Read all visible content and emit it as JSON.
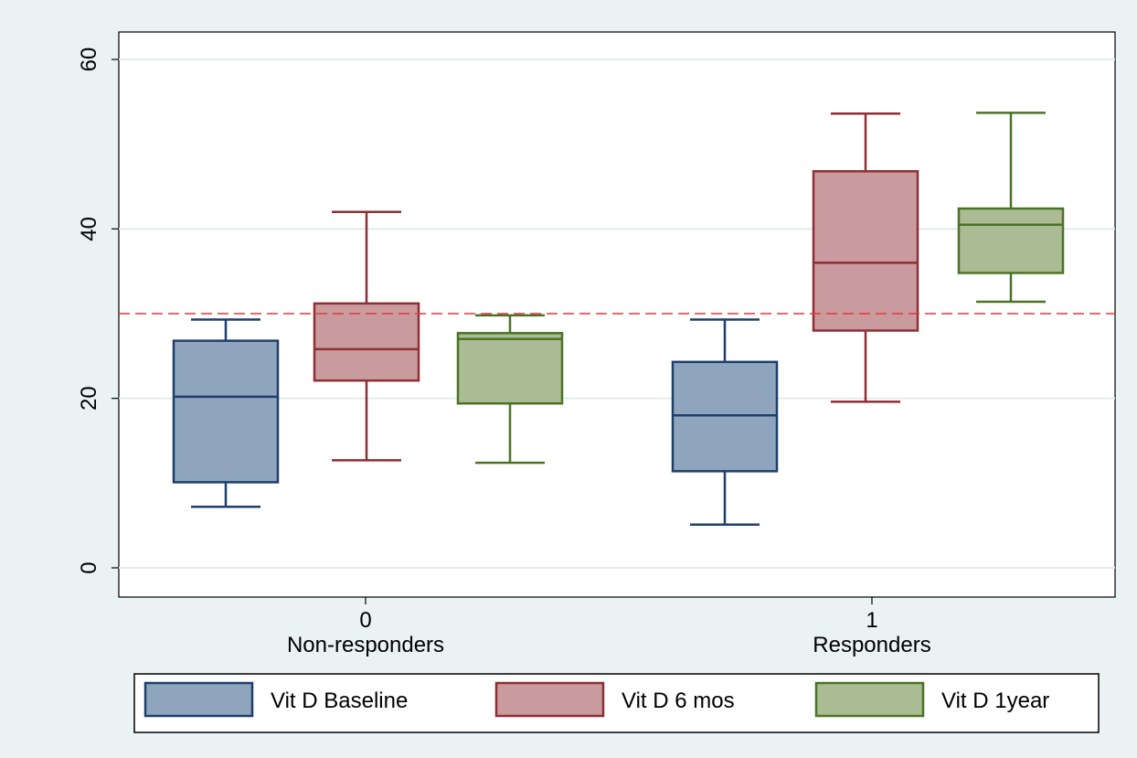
{
  "chart_data": {
    "type": "box",
    "title": "",
    "xlabel": "",
    "ylabel": "",
    "ylim": [
      -3.5,
      60
    ],
    "yticks": [
      0,
      20,
      40,
      60
    ],
    "groups": [
      {
        "code": "0",
        "label": "Non-responders"
      },
      {
        "code": "1",
        "label": "Responders"
      }
    ],
    "series": [
      {
        "name": "Vit D Baseline",
        "fill": "#8ea5bd",
        "stroke": "#1f3f6b",
        "boxes": [
          {
            "min": 7.2,
            "q1": 10.1,
            "median": 20.2,
            "q3": 26.8,
            "max": 29.3
          },
          {
            "min": 5.1,
            "q1": 11.4,
            "median": 18.0,
            "q3": 24.3,
            "max": 29.3
          }
        ]
      },
      {
        "name": "Vit D 6 mos",
        "fill": "#c99b9f",
        "stroke": "#8e2f33",
        "boxes": [
          {
            "min": 12.7,
            "q1": 22.1,
            "median": 25.8,
            "q3": 31.2,
            "max": 42.0
          },
          {
            "min": 19.6,
            "q1": 28.0,
            "median": 36.0,
            "q3": 46.8,
            "max": 53.6
          }
        ]
      },
      {
        "name": "Vit D 1year",
        "fill": "#abbc94",
        "stroke": "#4b7325",
        "boxes": [
          {
            "min": 12.4,
            "q1": 19.4,
            "median": 27.0,
            "q3": 27.7,
            "max": 29.8
          },
          {
            "min": 31.4,
            "q1": 34.8,
            "median": 40.5,
            "q3": 42.4,
            "max": 53.7
          }
        ]
      }
    ],
    "reference_line": {
      "value": 30,
      "color": "#e03a3a",
      "style": "dashed"
    },
    "grid": true,
    "legend_position": "bottom"
  }
}
